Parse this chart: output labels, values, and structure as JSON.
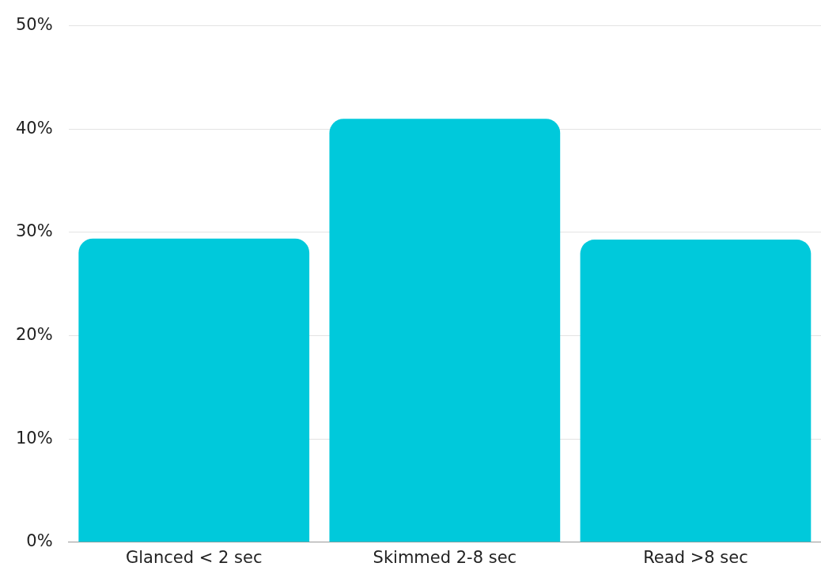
{
  "chart_data": {
    "type": "bar",
    "categories": [
      "Glanced < 2 sec",
      "Skimmed 2-8 sec",
      "Read >8 sec"
    ],
    "values": [
      29.4,
      41,
      29.3
    ],
    "color": "#00c9db",
    "ylim": [
      0,
      50
    ],
    "yticks": [
      {
        "value": 0,
        "label": "0%"
      },
      {
        "value": 10,
        "label": "10%"
      },
      {
        "value": 20,
        "label": "20%"
      },
      {
        "value": 30,
        "label": "30%"
      },
      {
        "value": 40,
        "label": "40%"
      },
      {
        "value": 50,
        "label": "50%"
      }
    ],
    "grid": "y",
    "legend": false
  }
}
